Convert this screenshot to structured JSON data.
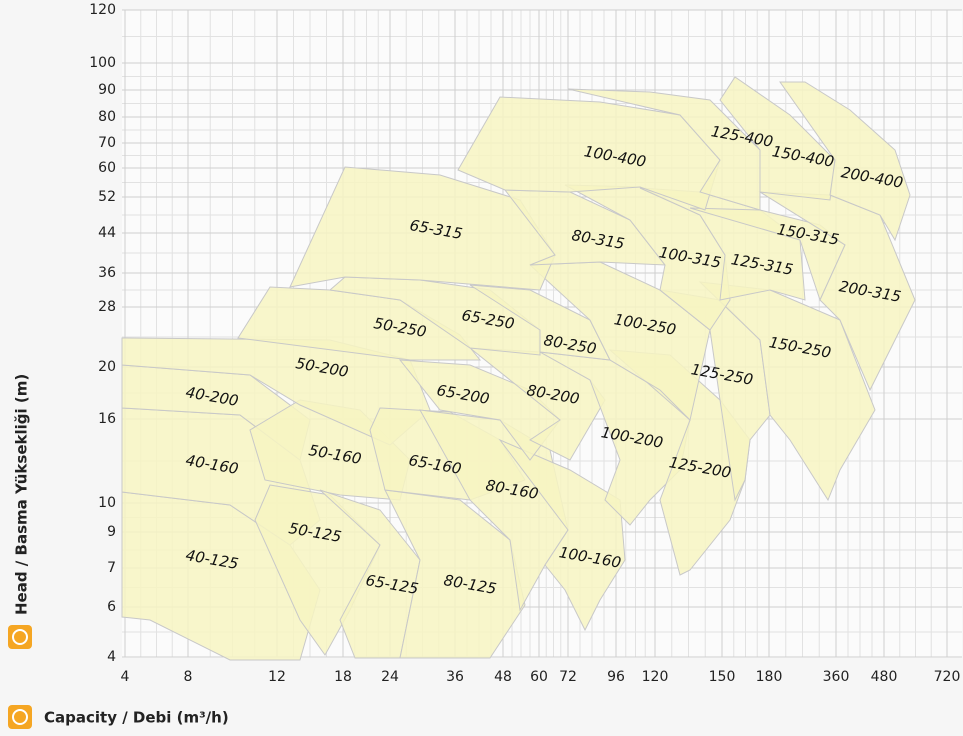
{
  "chart_data": {
    "type": "region",
    "xlabel": "Capacity / Debi (m³/h)",
    "ylabel": "Head / Basma Yüksekliği (m)",
    "xticks": [
      4,
      8,
      12,
      18,
      24,
      36,
      48,
      60,
      72,
      96,
      120,
      150,
      180,
      360,
      480,
      720
    ],
    "yticks": [
      120,
      100,
      90,
      80,
      70,
      60,
      52,
      44,
      36,
      28,
      20,
      16,
      10,
      9,
      7,
      6,
      4
    ],
    "regions": [
      "40-125",
      "40-160",
      "40-200",
      "50-125",
      "50-160",
      "50-200",
      "65-125",
      "80-125",
      "65-160",
      "80-160",
      "100-160",
      "65-200",
      "80-200",
      "100-200",
      "125-200",
      "50-250",
      "65-250",
      "80-250",
      "100-250",
      "125-250",
      "150-250",
      "65-315",
      "80-315",
      "100-315",
      "125-315",
      "150-315",
      "200-315",
      "100-400",
      "125-400",
      "150-400",
      "200-400"
    ]
  }
}
